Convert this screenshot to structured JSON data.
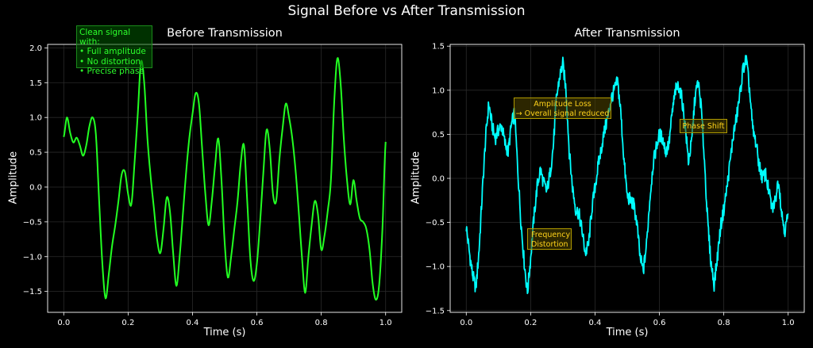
{
  "figure": {
    "title": "Signal Before vs After Transmission",
    "background": "#000000"
  },
  "chart_data": [
    {
      "type": "line",
      "title": "Before Transmission",
      "xlabel": "Time (s)",
      "ylabel": "Amplitude",
      "xlim": [
        -0.05,
        1.05
      ],
      "ylim": [
        -1.8,
        2.05
      ],
      "xticks": [
        0.0,
        0.2,
        0.4,
        0.6,
        0.8,
        1.0
      ],
      "xtick_labels": [
        "0.0",
        "0.2",
        "0.4",
        "0.6",
        "0.8",
        "1.0"
      ],
      "yticks": [
        -1.5,
        -1.0,
        -0.5,
        0.0,
        0.5,
        1.0,
        1.5,
        2.0
      ],
      "ytick_labels": [
        "−1.5",
        "−1.0",
        "−0.5",
        "0.0",
        "0.5",
        "1.0",
        "1.5",
        "2.0"
      ],
      "grid": true,
      "series": [
        {
          "color": "#22ff22",
          "x": [
            0.0,
            0.01,
            0.02,
            0.03,
            0.04,
            0.05,
            0.06,
            0.07,
            0.08,
            0.09,
            0.1,
            0.11,
            0.12,
            0.13,
            0.14,
            0.15,
            0.16,
            0.17,
            0.18,
            0.19,
            0.2,
            0.21,
            0.22,
            0.23,
            0.24,
            0.25,
            0.26,
            0.27,
            0.28,
            0.29,
            0.3,
            0.31,
            0.32,
            0.33,
            0.34,
            0.35,
            0.36,
            0.37,
            0.38,
            0.39,
            0.4,
            0.41,
            0.42,
            0.43,
            0.44,
            0.45,
            0.46,
            0.47,
            0.48,
            0.49,
            0.5,
            0.51,
            0.52,
            0.53,
            0.54,
            0.55,
            0.56,
            0.57,
            0.58,
            0.59,
            0.6,
            0.61,
            0.62,
            0.63,
            0.64,
            0.65,
            0.66,
            0.67,
            0.68,
            0.69,
            0.7,
            0.71,
            0.72,
            0.73,
            0.74,
            0.75,
            0.76,
            0.77,
            0.78,
            0.79,
            0.8,
            0.81,
            0.82,
            0.83,
            0.84,
            0.85,
            0.86,
            0.87,
            0.88,
            0.89,
            0.9,
            0.91,
            0.92,
            0.93,
            0.94,
            0.95,
            0.96,
            0.97,
            0.98,
            0.99,
            1.0
          ],
          "y": [
            0.72,
            1.0,
            0.78,
            0.64,
            0.71,
            0.6,
            0.45,
            0.6,
            0.88,
            1.0,
            0.75,
            -0.2,
            -1.1,
            -1.6,
            -1.25,
            -0.85,
            -0.55,
            -0.2,
            0.18,
            0.22,
            -0.1,
            -0.25,
            0.35,
            1.05,
            1.8,
            1.5,
            0.7,
            0.15,
            -0.3,
            -0.75,
            -0.95,
            -0.6,
            -0.15,
            -0.35,
            -0.95,
            -1.42,
            -1.0,
            -0.4,
            0.2,
            0.7,
            1.05,
            1.35,
            1.2,
            0.55,
            -0.1,
            -0.55,
            -0.2,
            0.3,
            0.7,
            0.1,
            -0.8,
            -1.3,
            -1.0,
            -0.6,
            -0.2,
            0.35,
            0.6,
            -0.2,
            -1.05,
            -1.35,
            -1.1,
            -0.5,
            0.2,
            0.82,
            0.55,
            -0.1,
            -0.2,
            0.4,
            0.85,
            1.2,
            1.0,
            0.7,
            0.25,
            -0.35,
            -1.0,
            -1.52,
            -1.0,
            -0.55,
            -0.2,
            -0.4,
            -0.9,
            -0.7,
            -0.35,
            0.1,
            1.2,
            1.85,
            1.5,
            0.7,
            0.1,
            -0.25,
            0.1,
            -0.2,
            -0.45,
            -0.5,
            -0.6,
            -0.9,
            -1.4,
            -1.62,
            -1.4,
            -0.6,
            0.65
          ]
        }
      ],
      "annotations": [
        {
          "text_lines": [
            "Clean signal with:",
            "• Full amplitude",
            "• No distortion",
            "• Precise phase"
          ],
          "color": "#22ff22"
        }
      ]
    },
    {
      "type": "line",
      "title": "After Transmission",
      "xlabel": "Time (s)",
      "ylabel": "Amplitude",
      "xlim": [
        -0.05,
        1.05
      ],
      "ylim": [
        -1.52,
        1.52
      ],
      "xticks": [
        0.0,
        0.2,
        0.4,
        0.6,
        0.8,
        1.0
      ],
      "xtick_labels": [
        "0.0",
        "0.2",
        "0.4",
        "0.6",
        "0.8",
        "1.0"
      ],
      "yticks": [
        -1.5,
        -1.0,
        -0.5,
        0.0,
        0.5,
        1.0,
        1.5
      ],
      "ytick_labels": [
        "−1.5",
        "−1.0",
        "−0.5",
        "0.0",
        "0.5",
        "1.0",
        "1.5"
      ],
      "grid": true,
      "series": [
        {
          "color": "#00ffff",
          "x": [
            0.0,
            0.01,
            0.02,
            0.03,
            0.04,
            0.05,
            0.06,
            0.07,
            0.08,
            0.09,
            0.1,
            0.11,
            0.12,
            0.13,
            0.14,
            0.15,
            0.16,
            0.17,
            0.18,
            0.19,
            0.2,
            0.21,
            0.22,
            0.23,
            0.24,
            0.25,
            0.26,
            0.27,
            0.28,
            0.29,
            0.3,
            0.31,
            0.32,
            0.33,
            0.34,
            0.35,
            0.36,
            0.37,
            0.38,
            0.39,
            0.4,
            0.41,
            0.42,
            0.43,
            0.44,
            0.45,
            0.46,
            0.47,
            0.48,
            0.49,
            0.5,
            0.51,
            0.52,
            0.53,
            0.54,
            0.55,
            0.56,
            0.57,
            0.58,
            0.59,
            0.6,
            0.61,
            0.62,
            0.63,
            0.64,
            0.65,
            0.66,
            0.67,
            0.68,
            0.69,
            0.7,
            0.71,
            0.72,
            0.73,
            0.74,
            0.75,
            0.76,
            0.77,
            0.78,
            0.79,
            0.8,
            0.81,
            0.82,
            0.83,
            0.84,
            0.85,
            0.86,
            0.87,
            0.88,
            0.89,
            0.9,
            0.91,
            0.92,
            0.93,
            0.94,
            0.95,
            0.96,
            0.97,
            0.98,
            0.99,
            1.0
          ],
          "y": [
            -0.55,
            -0.85,
            -1.1,
            -1.25,
            -0.8,
            -0.15,
            0.45,
            0.85,
            0.6,
            0.45,
            0.55,
            0.6,
            0.4,
            0.3,
            0.6,
            0.75,
            0.1,
            -0.5,
            -0.95,
            -1.3,
            -0.9,
            -0.45,
            -0.1,
            0.1,
            -0.05,
            -0.15,
            0.05,
            0.35,
            0.9,
            1.15,
            1.3,
            1.0,
            0.3,
            -0.1,
            -0.35,
            -0.4,
            -0.6,
            -0.85,
            -0.75,
            -0.35,
            -0.1,
            0.15,
            0.35,
            0.55,
            0.7,
            0.9,
            1.0,
            1.1,
            0.75,
            0.2,
            -0.2,
            -0.25,
            -0.3,
            -0.5,
            -0.9,
            -1.05,
            -0.75,
            -0.25,
            0.15,
            0.35,
            0.5,
            0.45,
            0.3,
            0.4,
            0.75,
            1.0,
            1.05,
            0.9,
            0.6,
            0.2,
            0.4,
            0.9,
            1.1,
            0.8,
            0.2,
            -0.5,
            -0.95,
            -1.2,
            -0.9,
            -0.55,
            -0.35,
            -0.1,
            0.2,
            0.5,
            0.7,
            0.95,
            1.25,
            1.35,
            1.0,
            0.55,
            0.4,
            0.15,
            0.0,
            0.05,
            -0.15,
            -0.35,
            -0.25,
            0.0,
            -0.4,
            -0.6,
            -0.4
          ]
        }
      ],
      "annotations": [
        {
          "text_lines": [
            "Amplitude Loss",
            "→ Overall signal reduced"
          ],
          "color": "#ffd21a"
        },
        {
          "text_lines": [
            "Phase Shift"
          ],
          "color": "#ffd21a"
        },
        {
          "text_lines": [
            "Frequency",
            "Distortion"
          ],
          "color": "#ffd21a"
        }
      ]
    }
  ]
}
